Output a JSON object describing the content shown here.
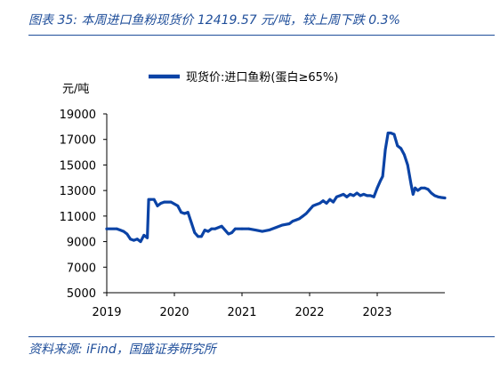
{
  "header": {
    "title": "图表 35:  本周进口鱼粉现货价 12419.57 元/吨，较上周下跌 0.3%"
  },
  "footer": {
    "source": "资料来源:  iFind，国盛证券研究所"
  },
  "colors": {
    "accent": "#1f4e9a",
    "series": "#0b43a6"
  },
  "chart_data": {
    "type": "line",
    "ylabel": "元/吨",
    "ylim": [
      5000,
      19000
    ],
    "yticks": [
      "19000",
      "17000",
      "15000",
      "13000",
      "11000",
      "9000",
      "7000",
      "5000"
    ],
    "xlim": [
      2019.0,
      2024.0
    ],
    "xticks": [
      "2019",
      "2020",
      "2021",
      "2022",
      "2023"
    ],
    "legend_position": "top-center",
    "grid": false,
    "series": [
      {
        "name": "现货价:进口鱼粉(蛋白≥65%)",
        "x": [
          2019.0,
          2019.15,
          2019.2,
          2019.25,
          2019.3,
          2019.35,
          2019.4,
          2019.45,
          2019.5,
          2019.55,
          2019.6,
          2019.62,
          2019.65,
          2019.7,
          2019.75,
          2019.8,
          2019.85,
          2019.95,
          2020.05,
          2020.1,
          2020.15,
          2020.2,
          2020.25,
          2020.3,
          2020.35,
          2020.4,
          2020.45,
          2020.5,
          2020.55,
          2020.6,
          2020.7,
          2020.8,
          2020.85,
          2020.9,
          2021.0,
          2021.1,
          2021.2,
          2021.3,
          2021.4,
          2021.5,
          2021.6,
          2021.7,
          2021.75,
          2021.8,
          2021.85,
          2021.9,
          2021.95,
          2022.0,
          2022.05,
          2022.1,
          2022.15,
          2022.2,
          2022.25,
          2022.3,
          2022.35,
          2022.4,
          2022.45,
          2022.5,
          2022.55,
          2022.6,
          2022.65,
          2022.7,
          2022.75,
          2022.8,
          2022.85,
          2022.9,
          2022.95,
          2023.0,
          2023.05,
          2023.08,
          2023.12,
          2023.16,
          2023.2,
          2023.25,
          2023.3,
          2023.35,
          2023.4,
          2023.45,
          2023.5,
          2023.53,
          2023.56,
          2023.6,
          2023.65,
          2023.7,
          2023.75,
          2023.8,
          2023.85,
          2023.9,
          2023.95,
          2024.0
        ],
        "values": [
          10000,
          10000,
          9900,
          9800,
          9600,
          9200,
          9100,
          9200,
          9000,
          9500,
          9300,
          12300,
          12300,
          12300,
          11800,
          12000,
          12100,
          12100,
          11800,
          11300,
          11200,
          11300,
          10500,
          9700,
          9400,
          9400,
          9900,
          9800,
          10000,
          10000,
          10200,
          9600,
          9700,
          10000,
          10000,
          10000,
          9900,
          9800,
          9900,
          10100,
          10300,
          10400,
          10600,
          10700,
          10800,
          11000,
          11200,
          11500,
          11800,
          11900,
          12000,
          12200,
          12000,
          12300,
          12100,
          12500,
          12600,
          12700,
          12500,
          12700,
          12600,
          12800,
          12600,
          12700,
          12600,
          12600,
          12500,
          13200,
          13800,
          14100,
          16200,
          17500,
          17500,
          17400,
          16500,
          16300,
          15800,
          15000,
          13500,
          12700,
          13200,
          13000,
          13200,
          13200,
          13100,
          12800,
          12600,
          12500,
          12450,
          12419.57
        ]
      }
    ]
  }
}
